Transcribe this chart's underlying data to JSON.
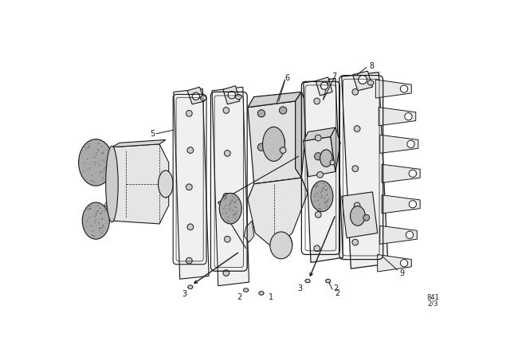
{
  "bg_color": "#ffffff",
  "line_color": "#1a1a1a",
  "fig_width": 6.4,
  "fig_height": 4.48,
  "dpi": 100,
  "xlim": [
    0,
    640
  ],
  "ylim": [
    0,
    448
  ]
}
